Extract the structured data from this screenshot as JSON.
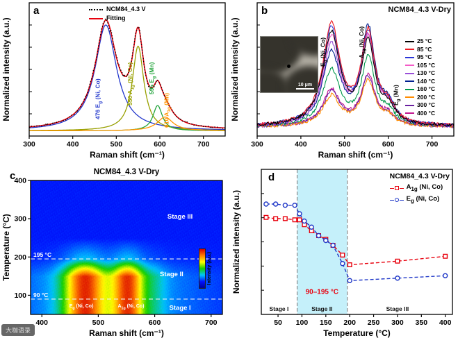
{
  "watermark": {
    "text": "大咖语录"
  },
  "chart_data": [
    {
      "id": "a",
      "type": "line",
      "letter": "a",
      "xlabel": "Raman shift (cm⁻¹)",
      "ylabel": "Normalized intensity (a.u.)",
      "xlim": [
        300,
        750
      ],
      "xticks": [
        300,
        400,
        500,
        600,
        700
      ],
      "legend": [
        {
          "label": "NCM84_4.3 V",
          "color": "#000000",
          "style": "dotted"
        },
        {
          "label": "Fitting",
          "color": "#e8000d",
          "style": "solid"
        }
      ],
      "peaks": [
        {
          "center": 476,
          "width": 30,
          "amp": 1.0,
          "color": "#2337cc",
          "label": "476 E_g (Ni, Co)"
        },
        {
          "center": 550,
          "width": 16,
          "amp": 0.8,
          "color": "#98a000",
          "label": "550 A_1g (Ni, Co)"
        },
        {
          "center": 595,
          "width": 13,
          "amp": 0.24,
          "color": "#23a43c",
          "label": "595 E_g (Mn)"
        },
        {
          "center": 612,
          "width": 22,
          "amp": 0.13,
          "color": "#ff9500",
          "label": "610 A_1g (Mn)"
        }
      ]
    },
    {
      "id": "b",
      "type": "line",
      "letter": "b",
      "title": "NCM84_4.3 V-Dry",
      "xlabel": "Raman shift (cm⁻¹)",
      "ylabel": "Normalized intensity (a.u.)",
      "xlim": [
        300,
        750
      ],
      "xticks": [
        300,
        400,
        500,
        600,
        700
      ],
      "series": [
        {
          "label": "25 °C",
          "color": "#000000",
          "eg": 0.92,
          "a1g": 0.8
        },
        {
          "label": "85 °C",
          "color": "#ec1c24",
          "eg": 1.0,
          "a1g": 0.9
        },
        {
          "label": "95 °C",
          "color": "#2a35d8",
          "eg": 0.96,
          "a1g": 0.88
        },
        {
          "label": "105 °C",
          "color": "#f45bc7",
          "eg": 0.88,
          "a1g": 0.84
        },
        {
          "label": "130 °C",
          "color": "#9a4fd8",
          "eg": 0.8,
          "a1g": 0.86
        },
        {
          "label": "140 °C",
          "color": "#001f8f",
          "eg": 0.72,
          "a1g": 0.95
        },
        {
          "label": "160 °C",
          "color": "#00984a",
          "eg": 0.55,
          "a1g": 0.66
        },
        {
          "label": "200 °C",
          "color": "#ff8c00",
          "eg": 0.3,
          "a1g": 0.45
        },
        {
          "label": "300 °C",
          "color": "#6a1fa0",
          "eg": 0.34,
          "a1g": 0.48
        },
        {
          "label": "400 °C",
          "color": "#c21690",
          "eg": 0.36,
          "a1g": 0.5
        }
      ],
      "peak_labels": [
        {
          "label": "E_g (Ni, Co)",
          "x": 455
        },
        {
          "label": "A_1g (Ni, Co)",
          "x": 543
        },
        {
          "label": "E_g (Mn)",
          "x": 622
        }
      ],
      "inset": {
        "scalebar": "10 μm"
      }
    },
    {
      "id": "c",
      "type": "heatmap",
      "letter": "c",
      "title": "NCM84_4.3 V-Dry",
      "xlabel": "Raman shift (cm⁻¹)",
      "ylabel": "Temperature (°C)",
      "xlim": [
        380,
        720
      ],
      "ylim": [
        50,
        400
      ],
      "xticks": [
        400,
        500,
        600,
        700
      ],
      "yticks": [
        100,
        200,
        300,
        400
      ],
      "hlines": [
        {
          "t": 195,
          "label": "195 °C"
        },
        {
          "t": 90,
          "label": "90 °C"
        }
      ],
      "stages": [
        {
          "label": "Stage III",
          "x": 645,
          "t": 300
        },
        {
          "label": "Stage II",
          "x": 630,
          "t": 150
        },
        {
          "label": "Stage I",
          "x": 645,
          "t": 62
        }
      ],
      "peak_labels": [
        {
          "label": "E_g (Ni, Co)",
          "x": 470,
          "t": 68
        },
        {
          "label": "A_1g (Ni, Co)",
          "x": 558,
          "t": 68
        }
      ],
      "heat_peaks": [
        {
          "center": 476,
          "sigma": 26,
          "amp": 0.62
        },
        {
          "center": 552,
          "sigma": 20,
          "amp": 0.6
        }
      ],
      "transition": {
        "start_fade": 150,
        "stage2_end": 195
      },
      "colorbar": {
        "label": "Intensity (a.u.)",
        "stops": [
          "#000096",
          "#0013ff",
          "#00c3ff",
          "#16d000",
          "#ffff00",
          "#ff7f00",
          "#d80000"
        ]
      }
    },
    {
      "id": "d",
      "type": "scatter",
      "letter": "d",
      "legend_title": "NCM84_4.3 V-Dry",
      "xlabel": "Temperature (°C)",
      "ylabel": "Normalized intensity (a.u.)",
      "xlim": [
        15,
        415
      ],
      "xticks": [
        50,
        100,
        150,
        200,
        250,
        300,
        350,
        400
      ],
      "band": {
        "from": 90,
        "to": 195,
        "label": "90–195 °C",
        "color": "#b6ecf9"
      },
      "temps": [
        25,
        45,
        65,
        85,
        95,
        105,
        120,
        135,
        150,
        165,
        185,
        200,
        300,
        400
      ],
      "series": [
        {
          "label": "A_1g (Ni, Co)",
          "marker": "square",
          "color": "#e8000d",
          "values": [
            0.73,
            0.72,
            0.72,
            0.71,
            0.71,
            0.67,
            0.62,
            0.58,
            0.55,
            0.5,
            0.42,
            0.34,
            0.37,
            0.41
          ]
        },
        {
          "label": "E_g (Ni, Co)",
          "marker": "circle",
          "color": "#2038c8",
          "values": [
            0.84,
            0.84,
            0.83,
            0.83,
            0.76,
            0.7,
            0.65,
            0.58,
            0.54,
            0.5,
            0.35,
            0.21,
            0.23,
            0.25
          ]
        }
      ],
      "stages": [
        {
          "label": "Stage I",
          "x": 52
        },
        {
          "label": "Stage II",
          "x": 142
        },
        {
          "label": "Stage III",
          "x": 300
        }
      ]
    }
  ]
}
